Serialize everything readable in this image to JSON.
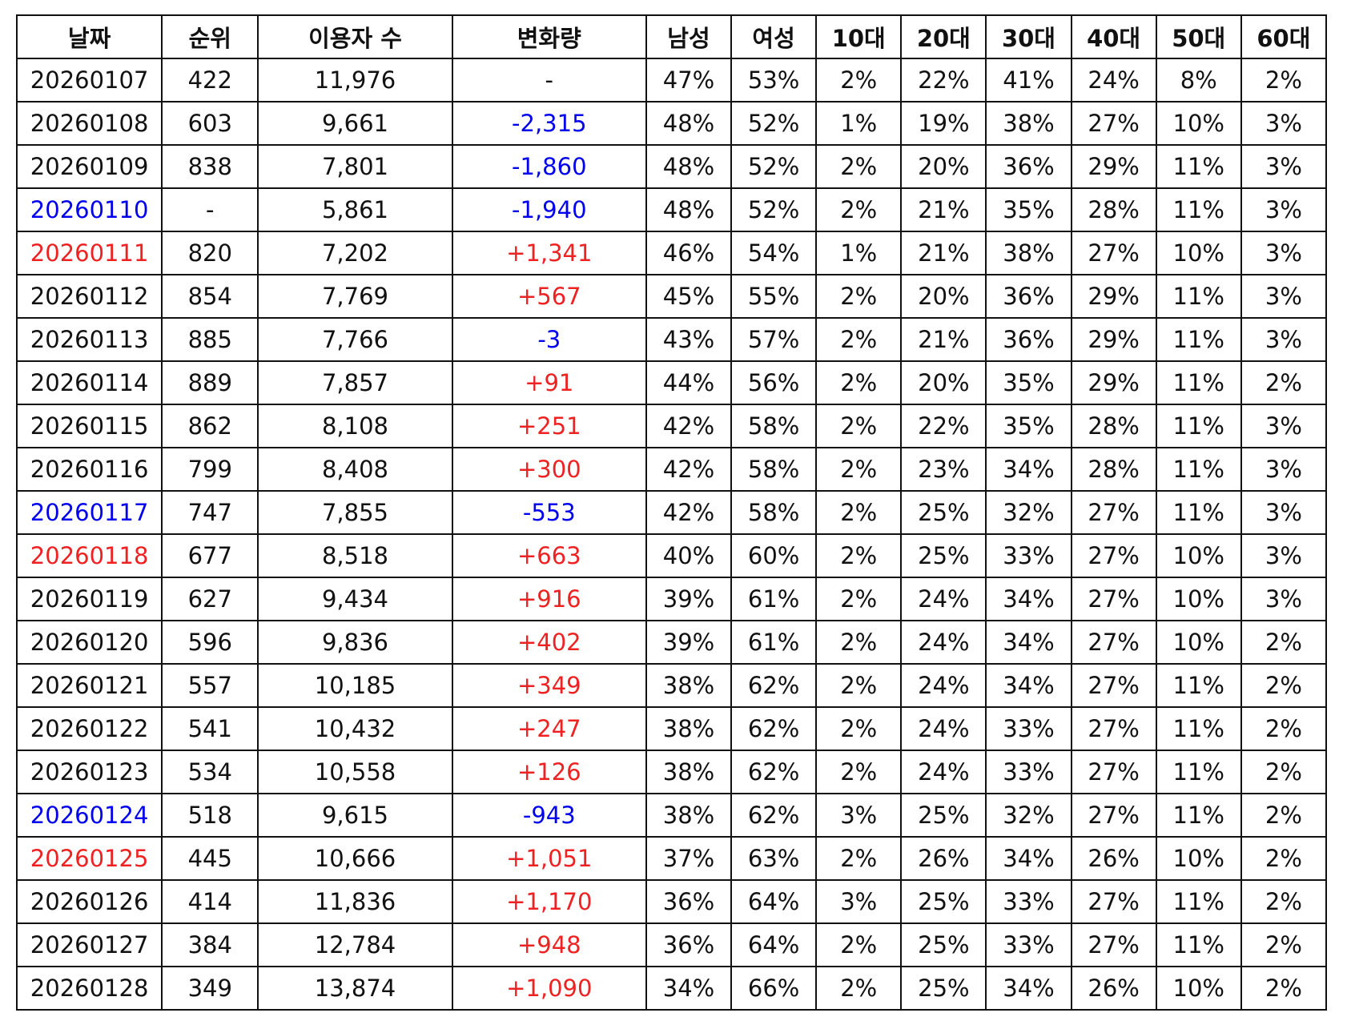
{
  "colors": {
    "weekend_saturday": "#0000ee",
    "weekend_sunday": "#ee2222",
    "change_negative": "#0000ee",
    "change_positive": "#ee2222",
    "text": "#111111"
  },
  "table": {
    "headers": [
      "날짜",
      "순위",
      "이용자 수",
      "변화량",
      "남성",
      "여성",
      "10대",
      "20대",
      "30대",
      "40대",
      "50대",
      "60대"
    ],
    "rows": [
      {
        "date": "20260107",
        "date_color": "default",
        "rank": "422",
        "users": "11,976",
        "change": "-",
        "change_color": "default",
        "male": "47%",
        "female": "53%",
        "age10": "2%",
        "age20": "22%",
        "age30": "41%",
        "age40": "24%",
        "age50": "8%",
        "age60": "2%"
      },
      {
        "date": "20260108",
        "date_color": "default",
        "rank": "603",
        "users": "9,661",
        "change": "-2,315",
        "change_color": "blue",
        "male": "48%",
        "female": "52%",
        "age10": "1%",
        "age20": "19%",
        "age30": "38%",
        "age40": "27%",
        "age50": "10%",
        "age60": "3%"
      },
      {
        "date": "20260109",
        "date_color": "default",
        "rank": "838",
        "users": "7,801",
        "change": "-1,860",
        "change_color": "blue",
        "male": "48%",
        "female": "52%",
        "age10": "2%",
        "age20": "20%",
        "age30": "36%",
        "age40": "29%",
        "age50": "11%",
        "age60": "3%"
      },
      {
        "date": "20260110",
        "date_color": "blue",
        "rank": "-",
        "users": "5,861",
        "change": "-1,940",
        "change_color": "blue",
        "male": "48%",
        "female": "52%",
        "age10": "2%",
        "age20": "21%",
        "age30": "35%",
        "age40": "28%",
        "age50": "11%",
        "age60": "3%"
      },
      {
        "date": "20260111",
        "date_color": "red",
        "rank": "820",
        "users": "7,202",
        "change": "+1,341",
        "change_color": "red",
        "male": "46%",
        "female": "54%",
        "age10": "1%",
        "age20": "21%",
        "age30": "38%",
        "age40": "27%",
        "age50": "10%",
        "age60": "3%"
      },
      {
        "date": "20260112",
        "date_color": "default",
        "rank": "854",
        "users": "7,769",
        "change": "+567",
        "change_color": "red",
        "male": "45%",
        "female": "55%",
        "age10": "2%",
        "age20": "20%",
        "age30": "36%",
        "age40": "29%",
        "age50": "11%",
        "age60": "3%"
      },
      {
        "date": "20260113",
        "date_color": "default",
        "rank": "885",
        "users": "7,766",
        "change": "-3",
        "change_color": "blue",
        "male": "43%",
        "female": "57%",
        "age10": "2%",
        "age20": "21%",
        "age30": "36%",
        "age40": "29%",
        "age50": "11%",
        "age60": "3%"
      },
      {
        "date": "20260114",
        "date_color": "default",
        "rank": "889",
        "users": "7,857",
        "change": "+91",
        "change_color": "red",
        "male": "44%",
        "female": "56%",
        "age10": "2%",
        "age20": "20%",
        "age30": "35%",
        "age40": "29%",
        "age50": "11%",
        "age60": "2%"
      },
      {
        "date": "20260115",
        "date_color": "default",
        "rank": "862",
        "users": "8,108",
        "change": "+251",
        "change_color": "red",
        "male": "42%",
        "female": "58%",
        "age10": "2%",
        "age20": "22%",
        "age30": "35%",
        "age40": "28%",
        "age50": "11%",
        "age60": "3%"
      },
      {
        "date": "20260116",
        "date_color": "default",
        "rank": "799",
        "users": "8,408",
        "change": "+300",
        "change_color": "red",
        "male": "42%",
        "female": "58%",
        "age10": "2%",
        "age20": "23%",
        "age30": "34%",
        "age40": "28%",
        "age50": "11%",
        "age60": "3%"
      },
      {
        "date": "20260117",
        "date_color": "blue",
        "rank": "747",
        "users": "7,855",
        "change": "-553",
        "change_color": "blue",
        "male": "42%",
        "female": "58%",
        "age10": "2%",
        "age20": "25%",
        "age30": "32%",
        "age40": "27%",
        "age50": "11%",
        "age60": "3%"
      },
      {
        "date": "20260118",
        "date_color": "red",
        "rank": "677",
        "users": "8,518",
        "change": "+663",
        "change_color": "red",
        "male": "40%",
        "female": "60%",
        "age10": "2%",
        "age20": "25%",
        "age30": "33%",
        "age40": "27%",
        "age50": "10%",
        "age60": "3%"
      },
      {
        "date": "20260119",
        "date_color": "default",
        "rank": "627",
        "users": "9,434",
        "change": "+916",
        "change_color": "red",
        "male": "39%",
        "female": "61%",
        "age10": "2%",
        "age20": "24%",
        "age30": "34%",
        "age40": "27%",
        "age50": "10%",
        "age60": "3%"
      },
      {
        "date": "20260120",
        "date_color": "default",
        "rank": "596",
        "users": "9,836",
        "change": "+402",
        "change_color": "red",
        "male": "39%",
        "female": "61%",
        "age10": "2%",
        "age20": "24%",
        "age30": "34%",
        "age40": "27%",
        "age50": "10%",
        "age60": "2%"
      },
      {
        "date": "20260121",
        "date_color": "default",
        "rank": "557",
        "users": "10,185",
        "change": "+349",
        "change_color": "red",
        "male": "38%",
        "female": "62%",
        "age10": "2%",
        "age20": "24%",
        "age30": "34%",
        "age40": "27%",
        "age50": "11%",
        "age60": "2%"
      },
      {
        "date": "20260122",
        "date_color": "default",
        "rank": "541",
        "users": "10,432",
        "change": "+247",
        "change_color": "red",
        "male": "38%",
        "female": "62%",
        "age10": "2%",
        "age20": "24%",
        "age30": "33%",
        "age40": "27%",
        "age50": "11%",
        "age60": "2%"
      },
      {
        "date": "20260123",
        "date_color": "default",
        "rank": "534",
        "users": "10,558",
        "change": "+126",
        "change_color": "red",
        "male": "38%",
        "female": "62%",
        "age10": "2%",
        "age20": "24%",
        "age30": "33%",
        "age40": "27%",
        "age50": "11%",
        "age60": "2%"
      },
      {
        "date": "20260124",
        "date_color": "blue",
        "rank": "518",
        "users": "9,615",
        "change": "-943",
        "change_color": "blue",
        "male": "38%",
        "female": "62%",
        "age10": "3%",
        "age20": "25%",
        "age30": "32%",
        "age40": "27%",
        "age50": "11%",
        "age60": "2%"
      },
      {
        "date": "20260125",
        "date_color": "red",
        "rank": "445",
        "users": "10,666",
        "change": "+1,051",
        "change_color": "red",
        "male": "37%",
        "female": "63%",
        "age10": "2%",
        "age20": "26%",
        "age30": "34%",
        "age40": "26%",
        "age50": "10%",
        "age60": "2%"
      },
      {
        "date": "20260126",
        "date_color": "default",
        "rank": "414",
        "users": "11,836",
        "change": "+1,170",
        "change_color": "red",
        "male": "36%",
        "female": "64%",
        "age10": "3%",
        "age20": "25%",
        "age30": "33%",
        "age40": "27%",
        "age50": "11%",
        "age60": "2%"
      },
      {
        "date": "20260127",
        "date_color": "default",
        "rank": "384",
        "users": "12,784",
        "change": "+948",
        "change_color": "red",
        "male": "36%",
        "female": "64%",
        "age10": "2%",
        "age20": "25%",
        "age30": "33%",
        "age40": "27%",
        "age50": "11%",
        "age60": "2%"
      },
      {
        "date": "20260128",
        "date_color": "default",
        "rank": "349",
        "users": "13,874",
        "change": "+1,090",
        "change_color": "red",
        "male": "34%",
        "female": "66%",
        "age10": "2%",
        "age20": "25%",
        "age30": "34%",
        "age40": "26%",
        "age50": "10%",
        "age60": "2%"
      }
    ]
  }
}
